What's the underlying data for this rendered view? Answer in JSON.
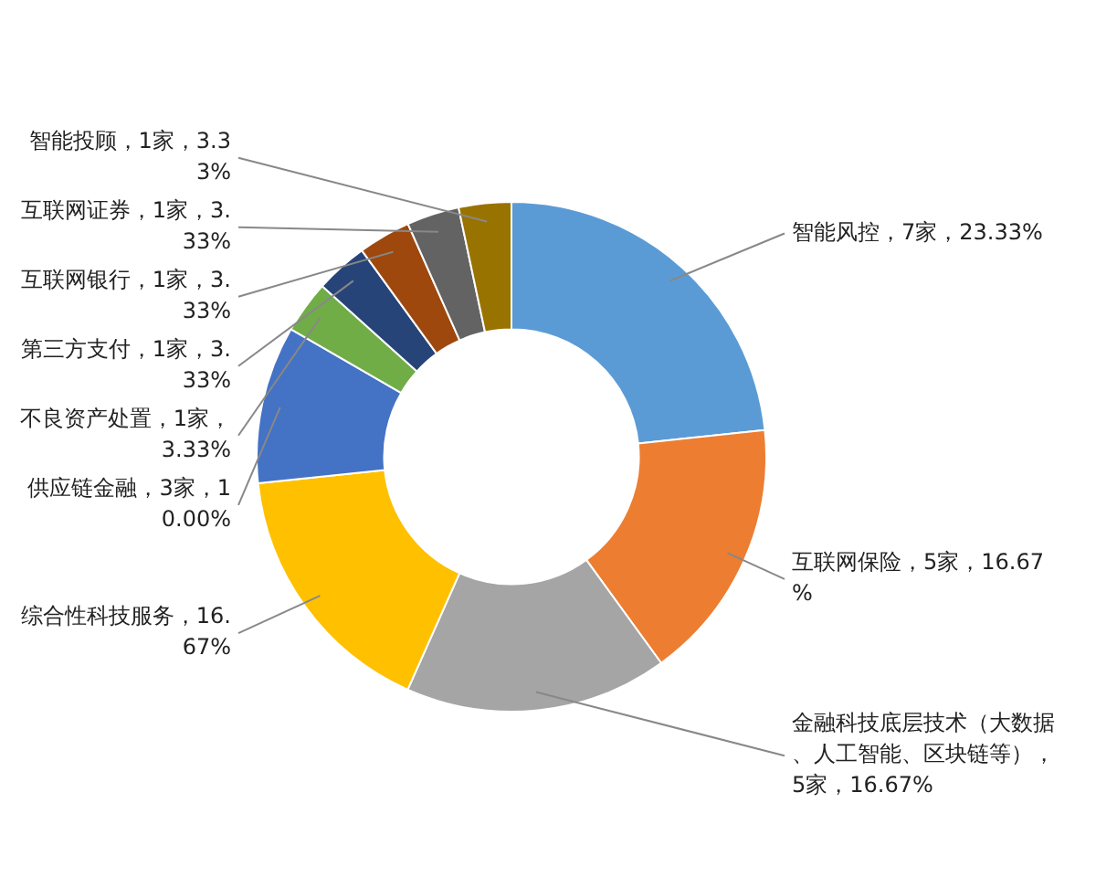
{
  "chart_data": {
    "type": "donut",
    "categories": [
      "智能风控，7家，23.33%",
      "互联网保险，5家，16.67%",
      "金融科技底层技术（大数据、人工智能、区块链等），5家，16.67%",
      "综合性科技服务，16.67%",
      "供应链金融，3家，10.00%",
      "不良资产处置，1家，3.33%",
      "第三方支付，1家，3.33%",
      "互联网银行，1家，3.33%",
      "互联网证券，1家，3.33%",
      "智能投顾，1家，3.33%"
    ],
    "values": [
      23.33,
      16.67,
      16.67,
      16.67,
      10.0,
      3.33,
      3.33,
      3.33,
      3.33,
      3.33
    ],
    "colors": [
      "#5b9bd5",
      "#ed7d31",
      "#a5a5a5",
      "#ffc000",
      "#4472c4",
      "#70ad47",
      "#264478",
      "#9e480e",
      "#636363",
      "#997300"
    ]
  }
}
